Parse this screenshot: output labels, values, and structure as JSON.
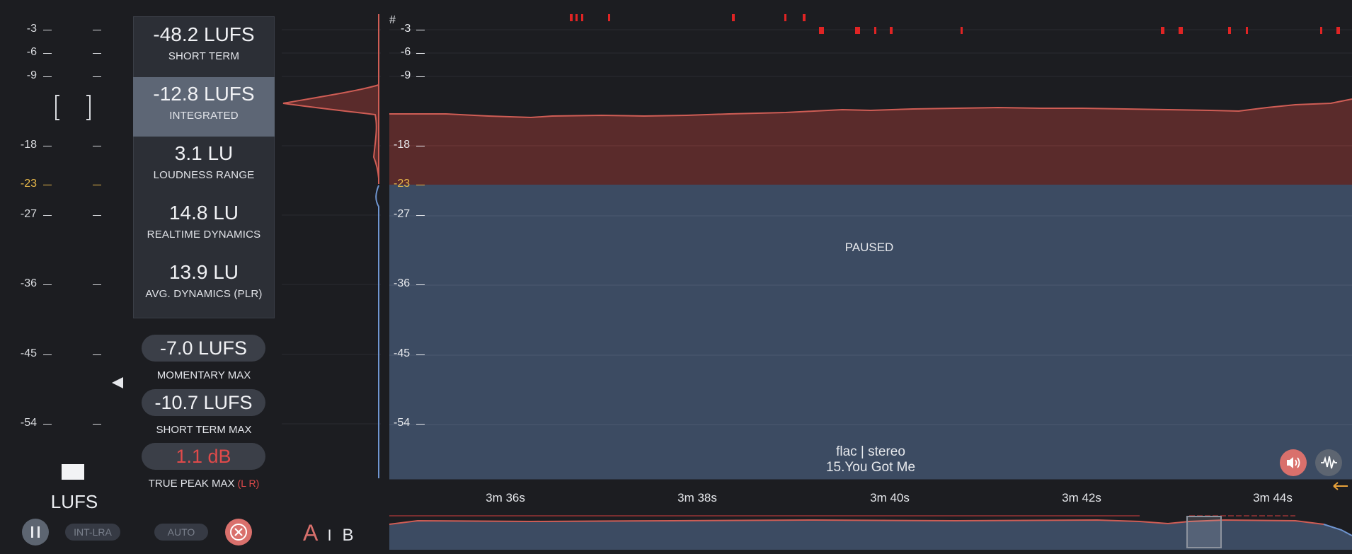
{
  "scale": {
    "ticks": [
      "-3",
      "-6",
      "-9",
      "-18",
      "-23",
      "-27",
      "-36",
      "-45",
      "-54"
    ],
    "reference_tick": "-23",
    "unit_label": "LUFS",
    "reference_color": "#e8b84a"
  },
  "stats": {
    "short_term": {
      "value": "-48.2 LUFS",
      "label": "SHORT TERM"
    },
    "integrated": {
      "value": "-12.8 LUFS",
      "label": "INTEGRATED"
    },
    "loudness_range": {
      "value": "3.1 LU",
      "label": "LOUDNESS RANGE"
    },
    "realtime_dynamics": {
      "value": "14.8 LU",
      "label": "REALTIME DYNAMICS"
    },
    "avg_dynamics": {
      "value": "13.9 LU",
      "label": "AVG. DYNAMICS (PLR)"
    }
  },
  "maxima": {
    "momentary_max": {
      "value": "-7.0 LUFS",
      "label": "MOMENTARY MAX"
    },
    "short_term_max": {
      "value": "-10.7 LUFS",
      "label": "SHORT TERM MAX"
    },
    "true_peak_max": {
      "value": "1.1 dB",
      "label": "TRUE PEAK MAX",
      "channels": "(L R)",
      "color": "#e04a4a"
    }
  },
  "controls": {
    "int_lra": "INT-LRA",
    "auto": "AUTO",
    "ab_a": "A",
    "ab_sep": "I",
    "ab_b": "B",
    "pause_icon": "pause-icon",
    "close_icon": "close-icon",
    "speaker_icon": "speaker-icon",
    "waveform_icon": "waveform-icon"
  },
  "graph": {
    "status": "PAUSED",
    "format": "flac | stereo",
    "track": "15.You Got Me",
    "time_labels": [
      "3m 36s",
      "3m 38s",
      "3m 40s",
      "3m 42s",
      "3m 44s"
    ],
    "colors": {
      "above": "#5a2b2b",
      "below": "#3c4b62",
      "line": "#cf5d55",
      "background": "#1c1d21"
    }
  }
}
